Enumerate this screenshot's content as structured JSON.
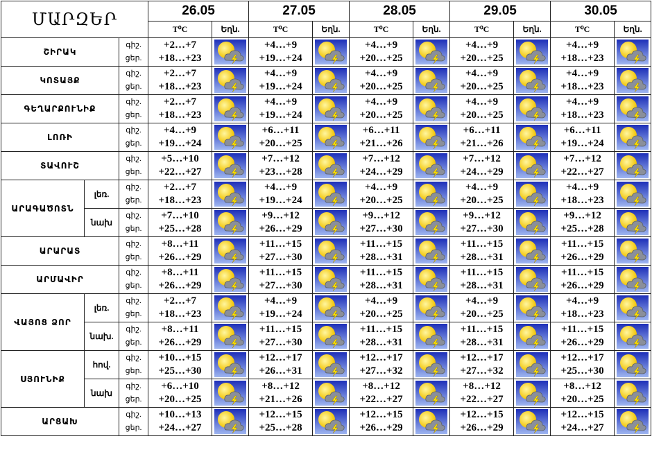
{
  "header": {
    "title": "ՄԱՐԶԵՐ",
    "dates": [
      "26.05",
      "27.05",
      "28.05",
      "29.05",
      "30.05"
    ],
    "temp_label": "T⁰C",
    "weather_label": "Եղն."
  },
  "period_labels": [
    "գիշ.",
    "ցեր."
  ],
  "regions": [
    {
      "name": "ՇԻՐԱԿ",
      "rows": [
        {
          "days": [
            [
              "+2…+7",
              "+18…+23"
            ],
            [
              "+4…+9",
              "+19…+24"
            ],
            [
              "+4…+9",
              "+20…+25"
            ],
            [
              "+4…+9",
              "+20…+25"
            ],
            [
              "+4…+9",
              "+18…+23"
            ]
          ]
        }
      ]
    },
    {
      "name": "ԿՈՏԱՅՔ",
      "rows": [
        {
          "days": [
            [
              "+2…+7",
              "+18…+23"
            ],
            [
              "+4…+9",
              "+19…+24"
            ],
            [
              "+4…+9",
              "+20…+25"
            ],
            [
              "+4…+9",
              "+20…+25"
            ],
            [
              "+4…+9",
              "+18…+23"
            ]
          ]
        }
      ]
    },
    {
      "name": "ԳԵՂԱՐՔՈՒՆԻՔ",
      "rows": [
        {
          "days": [
            [
              "+2…+7",
              "+18…+23"
            ],
            [
              "+4…+9",
              "+19…+24"
            ],
            [
              "+4…+9",
              "+20…+25"
            ],
            [
              "+4…+9",
              "+20…+25"
            ],
            [
              "+4…+9",
              "+18…+23"
            ]
          ]
        }
      ]
    },
    {
      "name": "ԼՈՌԻ",
      "rows": [
        {
          "days": [
            [
              "+4…+9",
              "+19…+24"
            ],
            [
              "+6…+11",
              "+20…+25"
            ],
            [
              "+6…+11",
              "+21…+26"
            ],
            [
              "+6…+11",
              "+21…+26"
            ],
            [
              "+6…+11",
              "+19…+24"
            ]
          ]
        }
      ]
    },
    {
      "name": "ՏԱՎՈՒՇ",
      "rows": [
        {
          "days": [
            [
              "+5…+10",
              "+22…+27"
            ],
            [
              "+7…+12",
              "+23…+28"
            ],
            [
              "+7…+12",
              "+24…+29"
            ],
            [
              "+7…+12",
              "+24…+29"
            ],
            [
              "+7…+12",
              "+22…+27"
            ]
          ]
        }
      ]
    },
    {
      "name": "ԱՐԱԳԱԾՈՏՆ",
      "rows": [
        {
          "sub": "լեռ.",
          "days": [
            [
              "+2…+7",
              "+18…+23"
            ],
            [
              "+4…+9",
              "+19…+24"
            ],
            [
              "+4…+9",
              "+20…+25"
            ],
            [
              "+4…+9",
              "+20…+25"
            ],
            [
              "+4…+9",
              "+18…+23"
            ]
          ]
        },
        {
          "sub": "նախ",
          "days": [
            [
              "+7…+10",
              "+25…+28"
            ],
            [
              "+9…+12",
              "+26…+29"
            ],
            [
              "+9…+12",
              "+27…+30"
            ],
            [
              "+9…+12",
              "+27…+30"
            ],
            [
              "+9…+12",
              "+25…+28"
            ]
          ]
        }
      ]
    },
    {
      "name": "ԱՐԱՐԱՏ",
      "rows": [
        {
          "days": [
            [
              "+8…+11",
              "+26…+29"
            ],
            [
              "+11…+15",
              "+27…+30"
            ],
            [
              "+11…+15",
              "+28…+31"
            ],
            [
              "+11…+15",
              "+28…+31"
            ],
            [
              "+11…+15",
              "+26…+29"
            ]
          ]
        }
      ]
    },
    {
      "name": "ԱՐՄԱՎԻՐ",
      "rows": [
        {
          "days": [
            [
              "+8…+11",
              "+26…+29"
            ],
            [
              "+11…+15",
              "+27…+30"
            ],
            [
              "+11…+15",
              "+28…+31"
            ],
            [
              "+11…+15",
              "+28…+31"
            ],
            [
              "+11…+15",
              "+26…+29"
            ]
          ]
        }
      ]
    },
    {
      "name": "ՎԱՅՈՑ ՁՈՐ",
      "rows": [
        {
          "sub": "լեռ.",
          "days": [
            [
              "+2…+7",
              "+18…+23"
            ],
            [
              "+4…+9",
              "+19…+24"
            ],
            [
              "+4…+9",
              "+20…+25"
            ],
            [
              "+4…+9",
              "+20…+25"
            ],
            [
              "+4…+9",
              "+18…+23"
            ]
          ]
        },
        {
          "sub": "նախ.",
          "days": [
            [
              "+8…+11",
              "+26…+29"
            ],
            [
              "+11…+15",
              "+27…+30"
            ],
            [
              "+11…+15",
              "+28…+31"
            ],
            [
              "+11…+15",
              "+28…+31"
            ],
            [
              "+11…+15",
              "+26…+29"
            ]
          ]
        }
      ]
    },
    {
      "name": "ՍՅՈՒՆԻՔ",
      "rows": [
        {
          "sub": "հով.",
          "days": [
            [
              "+10…+15",
              "+25…+30"
            ],
            [
              "+12…+17",
              "+26…+31"
            ],
            [
              "+12…+17",
              "+27…+32"
            ],
            [
              "+12…+17",
              "+27…+32"
            ],
            [
              "+12…+17",
              "+25…+30"
            ]
          ]
        },
        {
          "sub": "նախ",
          "days": [
            [
              "+6…+10",
              "+20…+25"
            ],
            [
              "+8…+12",
              "+21…+26"
            ],
            [
              "+8…+12",
              "+22…+27"
            ],
            [
              "+8…+12",
              "+22…+27"
            ],
            [
              "+8…+12",
              "+20…+25"
            ]
          ]
        }
      ]
    },
    {
      "name": "ԱՐՑԱԽ",
      "rows": [
        {
          "days": [
            [
              "+10…+13",
              "+24…+27"
            ],
            [
              "+12…+15",
              "+25…+28"
            ],
            [
              "+12…+15",
              "+26…+29"
            ],
            [
              "+12…+15",
              "+26…+29"
            ],
            [
              "+12…+15",
              "+24…+27"
            ]
          ]
        }
      ]
    }
  ]
}
